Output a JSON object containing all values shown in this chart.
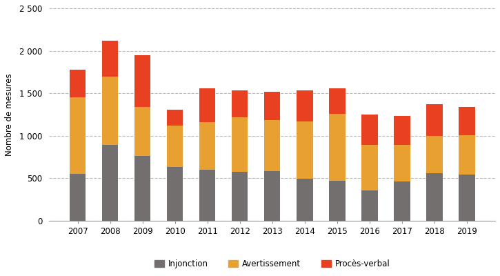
{
  "years": [
    2007,
    2008,
    2009,
    2010,
    2011,
    2012,
    2013,
    2014,
    2015,
    2016,
    2017,
    2018,
    2019
  ],
  "injonction": [
    550,
    890,
    760,
    630,
    600,
    575,
    585,
    495,
    470,
    360,
    460,
    560,
    545
  ],
  "avertissement": [
    900,
    810,
    580,
    490,
    560,
    645,
    600,
    675,
    790,
    530,
    430,
    435,
    460
  ],
  "proces_verbal": [
    325,
    420,
    610,
    190,
    395,
    310,
    330,
    360,
    300,
    360,
    340,
    375,
    330
  ],
  "colors": {
    "injonction": "#736f6f",
    "avertissement": "#e8a030",
    "proces_verbal": "#e84020"
  },
  "ylabel": "Nombre de mesures",
  "ylim": [
    0,
    2500
  ],
  "yticks": [
    0,
    500,
    1000,
    1500,
    2000,
    2500
  ],
  "ytick_labels": [
    "0",
    "500",
    "1 000",
    "1 500",
    "2 000",
    "2 500"
  ],
  "legend_labels": [
    "Injonction",
    "Avertissement",
    "Procès-verbal"
  ],
  "background_color": "#ffffff",
  "grid_color": "#bbbbbb",
  "bar_width": 0.5
}
